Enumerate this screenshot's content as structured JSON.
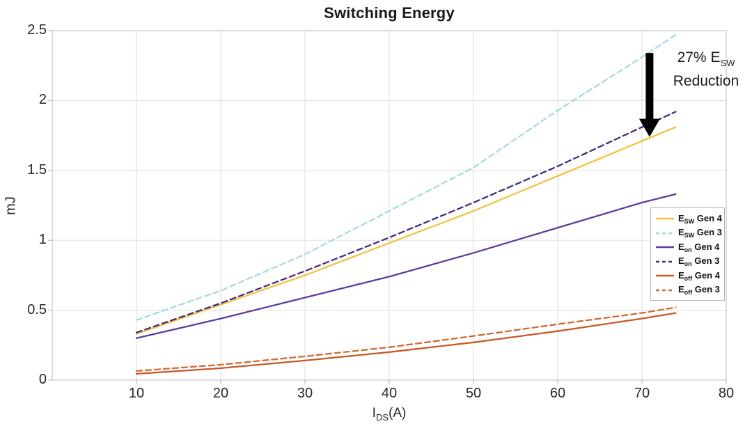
{
  "chart_data": {
    "type": "line",
    "title": "Switching Energy",
    "ylabel": "mJ",
    "xlabel": {
      "base": "I",
      "sub": "DS",
      "unit": "(A)"
    },
    "xlim": [
      0,
      80
    ],
    "ylim": [
      0,
      2.5
    ],
    "xticks": [
      10,
      20,
      30,
      40,
      50,
      60,
      70,
      80
    ],
    "yticks": [
      0,
      0.5,
      1,
      1.5,
      2,
      2.5
    ],
    "grid": true,
    "legend_position": "right-middle",
    "x": [
      10,
      20,
      30,
      40,
      50,
      60,
      70,
      74
    ],
    "series": [
      {
        "base": "E",
        "sub": "SW",
        "gen": " Gen 4",
        "color": "#F2C240",
        "dash": "solid",
        "values": [
          0.33,
          0.54,
          0.75,
          0.98,
          1.21,
          1.46,
          1.71,
          1.81
        ]
      },
      {
        "base": "E",
        "sub": "SW",
        "gen": " Gen 3",
        "color": "#A8D8DF",
        "dash": "dashed",
        "values": [
          0.43,
          0.64,
          0.9,
          1.21,
          1.52,
          1.93,
          2.31,
          2.47
        ]
      },
      {
        "base": "E",
        "sub": "on",
        "gen": " Gen 4",
        "color": "#5E3C99",
        "dash": "solid",
        "values": [
          0.3,
          0.44,
          0.59,
          0.74,
          0.91,
          1.09,
          1.27,
          1.33
        ]
      },
      {
        "base": "E",
        "sub": "on",
        "gen": " Gen 3",
        "color": "#452C7C",
        "dash": "dashed",
        "values": [
          0.34,
          0.55,
          0.78,
          1.02,
          1.27,
          1.53,
          1.81,
          1.92
        ]
      },
      {
        "base": "E",
        "sub": "off",
        "gen": " Gen 4",
        "color": "#C65A27",
        "dash": "solid",
        "values": [
          0.045,
          0.085,
          0.14,
          0.2,
          0.27,
          0.35,
          0.44,
          0.48
        ]
      },
      {
        "base": "E",
        "sub": "off",
        "gen": " Gen 3",
        "color": "#CC6B35",
        "dash": "dashed",
        "values": [
          0.065,
          0.11,
          0.17,
          0.235,
          0.315,
          0.4,
          0.48,
          0.52
        ]
      }
    ],
    "annotation": {
      "line1_prefix": "27% E",
      "line1_sub": "SW",
      "line2": "Reduction",
      "arrow_color": "#000000",
      "arrow_x": 70.9,
      "arrow_y_from": 2.34,
      "arrow_y_to": 1.74
    },
    "colors": {
      "grid": "#e2e2e2",
      "box_border": "#c9c9c9",
      "tick_mark": "#bdbdbd",
      "text": "#262626"
    }
  }
}
